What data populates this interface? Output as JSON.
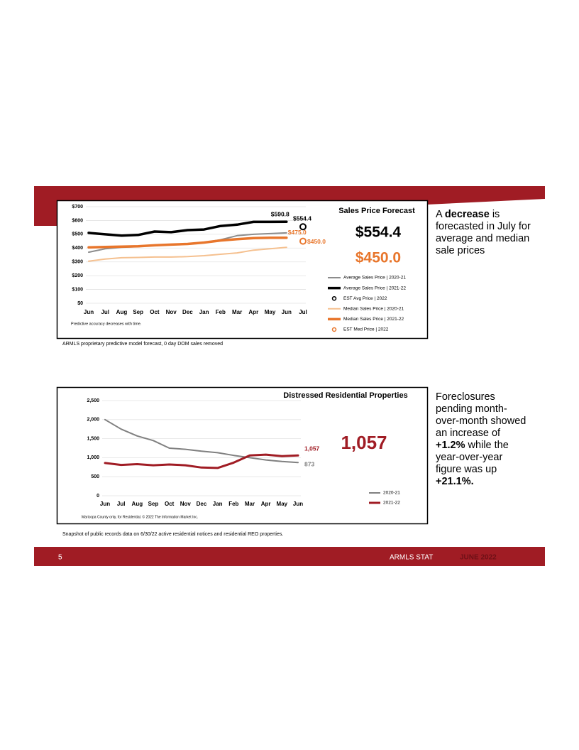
{
  "chart_data": [
    {
      "type": "line",
      "title": "Sales Price Forecast",
      "headlines": [
        {
          "text": "$554.4",
          "color": "#000000"
        },
        {
          "text": "$450.0",
          "color": "#e8762c"
        }
      ],
      "categories": [
        "Jun",
        "Jul",
        "Aug",
        "Sep",
        "Oct",
        "Nov",
        "Dec",
        "Jan",
        "Feb",
        "Mar",
        "Apr",
        "May",
        "Jun",
        "Jul"
      ],
      "ylim": [
        0,
        700
      ],
      "yticks": [
        {
          "value": 0,
          "label": "$0"
        },
        {
          "value": 100,
          "label": "$100"
        },
        {
          "value": 200,
          "label": "$200"
        },
        {
          "value": 300,
          "label": "$300"
        },
        {
          "value": 400,
          "label": "$400"
        },
        {
          "value": 500,
          "label": "$500"
        },
        {
          "value": 600,
          "label": "$600"
        },
        {
          "value": 700,
          "label": "$700"
        }
      ],
      "grid": true,
      "note": "Predictive accuracy decreases with time.",
      "caption": "ARMLS proprietary predictive model forecast, 0 day DOM sales removed",
      "series": [
        {
          "name": "Average Sales Price | 2020-21",
          "color": "#8c8c8c",
          "style": "line",
          "width": 2,
          "values": [
            370,
            395,
            405,
            410,
            420,
            425,
            430,
            440,
            460,
            490,
            500,
            505,
            510,
            null
          ]
        },
        {
          "name": "Average Sales Price | 2021-22",
          "color": "#000000",
          "style": "line",
          "width": 3.5,
          "values": [
            510,
            500,
            490,
            495,
            520,
            515,
            530,
            535,
            560,
            570,
            590,
            590,
            590.8,
            null
          ],
          "value_labels": [
            null,
            null,
            null,
            null,
            null,
            null,
            null,
            null,
            null,
            null,
            null,
            null,
            "$590.8",
            null
          ]
        },
        {
          "name": "EST Avg Price | 2022",
          "color": "#000000",
          "style": "marker",
          "values": [
            null,
            null,
            null,
            null,
            null,
            null,
            null,
            null,
            null,
            null,
            null,
            null,
            null,
            554.4
          ],
          "value_labels": [
            null,
            null,
            null,
            null,
            null,
            null,
            null,
            null,
            null,
            null,
            null,
            null,
            null,
            "$554.4"
          ]
        },
        {
          "name": "Median Sales Price | 2020-21",
          "color": "#f5c08f",
          "style": "line",
          "width": 2,
          "values": [
            305,
            320,
            330,
            332,
            335,
            335,
            338,
            345,
            355,
            365,
            385,
            395,
            405,
            null
          ]
        },
        {
          "name": "Median Sales Price | 2021-22",
          "color": "#e8762c",
          "style": "line",
          "width": 3.5,
          "values": [
            405,
            408,
            410,
            413,
            420,
            425,
            430,
            440,
            455,
            465,
            472,
            475,
            475,
            null
          ],
          "value_labels": [
            null,
            null,
            null,
            null,
            null,
            null,
            null,
            null,
            null,
            null,
            null,
            null,
            "$475.0",
            null
          ]
        },
        {
          "name": "EST Med Price | 2022",
          "color": "#e8762c",
          "style": "marker",
          "values": [
            null,
            null,
            null,
            null,
            null,
            null,
            null,
            null,
            null,
            null,
            null,
            null,
            null,
            450
          ],
          "value_labels": [
            null,
            null,
            null,
            null,
            null,
            null,
            null,
            null,
            null,
            null,
            null,
            null,
            null,
            "$450.0"
          ]
        }
      ]
    },
    {
      "type": "line",
      "title": "Distressed Residential Properties",
      "headlines": [
        {
          "text": "1,057",
          "color": "#a01c24"
        }
      ],
      "categories": [
        "Jun",
        "Jul",
        "Aug",
        "Sep",
        "Oct",
        "Nov",
        "Dec",
        "Jan",
        "Feb",
        "Mar",
        "Apr",
        "May",
        "Jun"
      ],
      "ylim": [
        0,
        2500
      ],
      "yticks": [
        0,
        500,
        {
          "value": 1000,
          "label": "1,000"
        },
        {
          "value": 1500,
          "label": "1,500"
        },
        {
          "value": 2000,
          "label": "2,000"
        },
        {
          "value": 2500,
          "label": "2,500"
        }
      ],
      "grid": true,
      "note": "Maricopa County only, for Residential. © 2022 The Information Market Inc.",
      "caption": "Snapshot of public records data on 6/30/22 active residential notices and residential REO properties.",
      "series": [
        {
          "name": "2020-21",
          "color": "#808080",
          "style": "line",
          "width": 2,
          "values": [
            2000,
            1750,
            1570,
            1450,
            1250,
            1220,
            1170,
            1130,
            1060,
            1000,
            940,
            900,
            873
          ],
          "value_labels": [
            null,
            null,
            null,
            null,
            null,
            null,
            null,
            null,
            null,
            null,
            null,
            null,
            "873"
          ]
        },
        {
          "name": "2021-22",
          "color": "#a01c24",
          "style": "line",
          "width": 3,
          "values": [
            860,
            810,
            830,
            800,
            820,
            800,
            740,
            730,
            870,
            1060,
            1080,
            1040,
            1057
          ],
          "value_labels": [
            null,
            null,
            null,
            null,
            null,
            null,
            null,
            null,
            null,
            null,
            null,
            null,
            "1,057"
          ]
        }
      ]
    }
  ],
  "side_notes": [
    {
      "parts": [
        {
          "text": "A ",
          "bold": false
        },
        {
          "text": "decrease",
          "bold": true
        },
        {
          "text": " is forecasted in July for average and median sale prices",
          "bold": false
        }
      ]
    },
    {
      "parts": [
        {
          "text": "Foreclosures pending month-over-month showed an increase of ",
          "bold": false
        },
        {
          "text": "+1.2%",
          "bold": true
        },
        {
          "text": " while the year-over-year figure was up ",
          "bold": false
        },
        {
          "text": "+21.1%.",
          "bold": true
        }
      ]
    }
  ],
  "footer": {
    "page": "5",
    "brand": "ARMLS STAT",
    "date": "JUNE 2022"
  }
}
